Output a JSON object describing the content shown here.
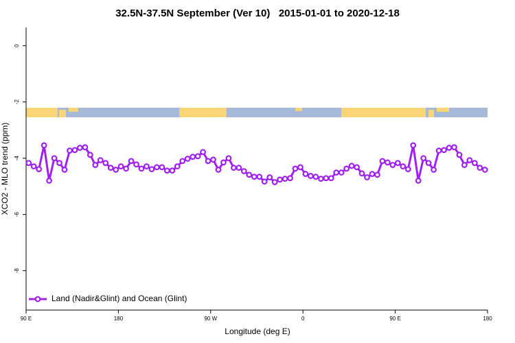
{
  "chart_data": {
    "type": "line",
    "title": "32.5N-37.5N September (Ver 10)   2015-01-01 to 2020-12-18",
    "x_label": "Longitude (deg E)",
    "y_label": "XCO2 - MLO trend (ppm)",
    "xlim": [
      90,
      540
    ],
    "xticks": [
      {
        "value": 90,
        "label": "90 E"
      },
      180,
      {
        "value": 270,
        "label": "90 W"
      },
      {
        "value": 360,
        "label": "0"
      },
      {
        "value": 450,
        "label": "90 E"
      },
      180
    ],
    "ylim": [
      -9.4,
      0.65
    ],
    "yticks": [
      0,
      -2,
      -4,
      -6,
      -8
    ],
    "legend": "bottom-left",
    "x": [
      92.5,
      97.5,
      102.5,
      107.5,
      112.5,
      117.5,
      122.5,
      127.5,
      132.5,
      137.5,
      142.5,
      147.5,
      152.5,
      157.5,
      162.5,
      167.5,
      172.5,
      177.5,
      182.5,
      187.5,
      192.5,
      197.5,
      202.5,
      207.5,
      212.5,
      217.5,
      222.5,
      227.5,
      232.5,
      237.5,
      242.5,
      247.5,
      252.5,
      257.5,
      262.5,
      267.5,
      272.5,
      277.5,
      282.5,
      287.5,
      292.5,
      297.5,
      302.5,
      307.5,
      312.5,
      317.5,
      322.5,
      327.5,
      332.5,
      337.5,
      342.5,
      347.5,
      352.5,
      357.5,
      362.5,
      367.5,
      372.5,
      377.5,
      382.5,
      387.5,
      392.5,
      397.5,
      402.5,
      407.5,
      412.5,
      417.5,
      422.5,
      427.5,
      432.5,
      437.5,
      442.5,
      447.5,
      452.5,
      457.5,
      462.5,
      467.5,
      472.5,
      477.5,
      482.5,
      487.5,
      492.5,
      497.5,
      502.5,
      507.5,
      512.5,
      517.5,
      522.5,
      527.5,
      532.5,
      537.5
    ],
    "series": [
      {
        "name": "Land (Nadir&Glint) and Ocean (Glint)",
        "color": "#a020f0",
        "values": [
          -4.17,
          -4.29,
          -4.39,
          -3.54,
          -4.8,
          -4.0,
          -4.17,
          -4.41,
          -3.73,
          -3.71,
          -3.63,
          -3.61,
          -3.88,
          -4.24,
          -4.07,
          -4.17,
          -4.34,
          -4.41,
          -4.29,
          -4.37,
          -4.1,
          -4.22,
          -4.37,
          -4.29,
          -4.39,
          -4.32,
          -4.32,
          -4.44,
          -4.44,
          -4.29,
          -4.1,
          -4.02,
          -3.95,
          -3.93,
          -3.78,
          -4.1,
          -4.05,
          -4.41,
          -4.15,
          -4.0,
          -4.34,
          -4.34,
          -4.46,
          -4.59,
          -4.66,
          -4.66,
          -4.83,
          -4.68,
          -4.85,
          -4.76,
          -4.73,
          -4.71,
          -4.37,
          -4.32,
          -4.56,
          -4.63,
          -4.66,
          -4.73,
          -4.71,
          -4.71,
          -4.51,
          -4.51,
          -4.37,
          -4.27,
          -4.32,
          -4.54,
          -4.68,
          -4.56,
          -4.59,
          -4.1,
          -4.15,
          -4.24,
          -4.17,
          -4.29,
          -4.39,
          -3.54,
          -4.8,
          -4.0,
          -4.17,
          -4.41,
          -3.73,
          -3.71,
          -3.63,
          -3.61,
          -3.88,
          -4.24,
          -4.07,
          -4.17,
          -4.34,
          -4.41
        ]
      }
    ]
  }
}
